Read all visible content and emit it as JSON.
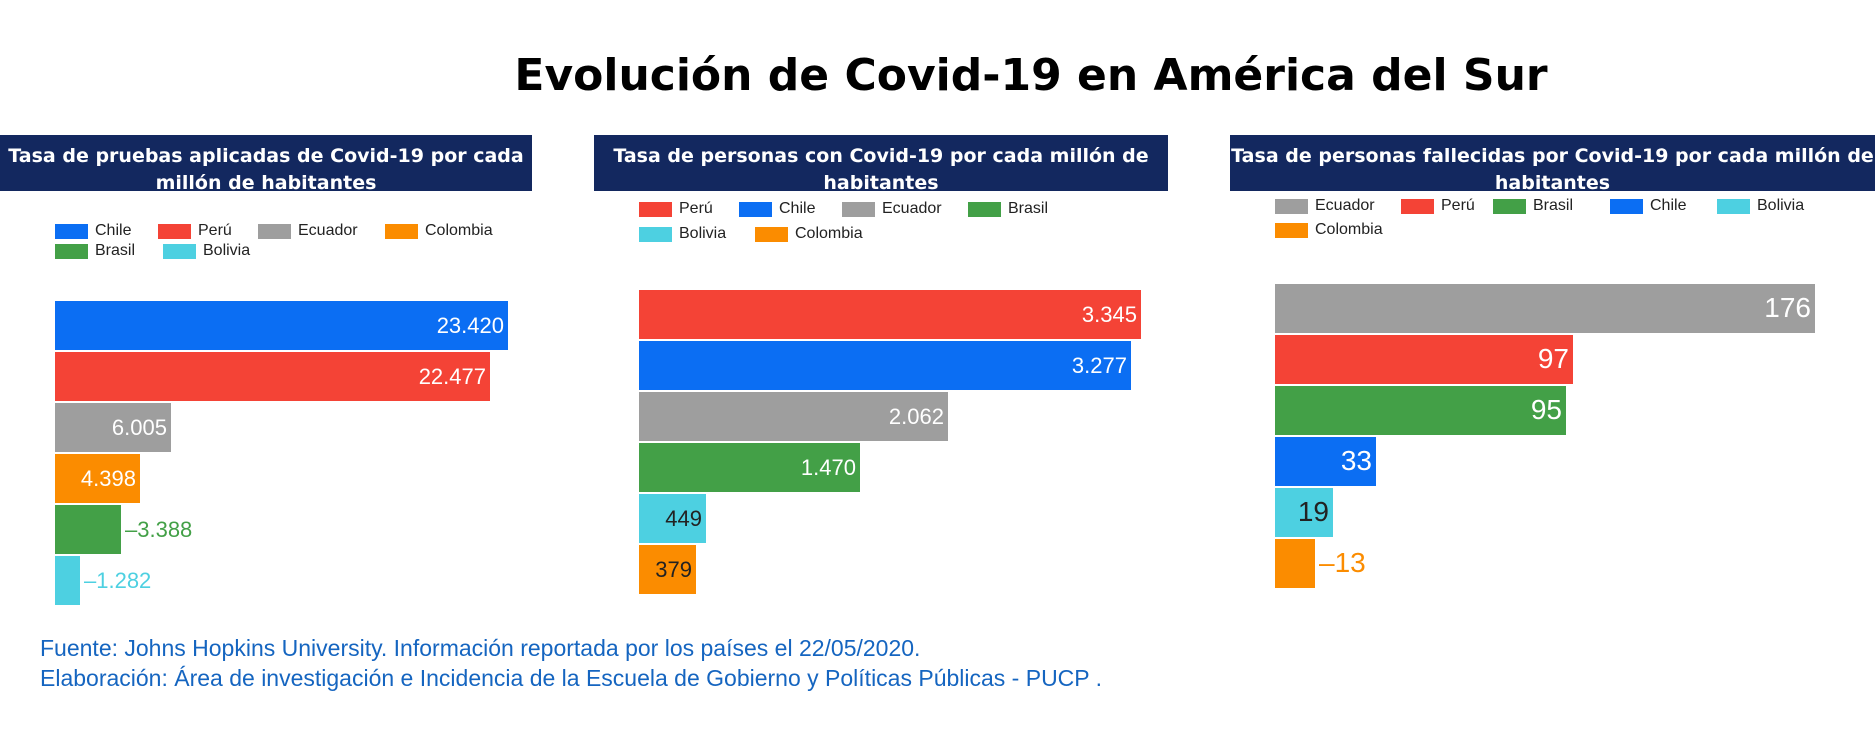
{
  "title": "Evolución de Covid-19 en América del Sur",
  "colors": {
    "Chile": "#0b6ef3",
    "Perú": "#f44336",
    "Ecuador": "#9e9e9e",
    "Colombia": "#fb8c00",
    "Brasil": "#43a047",
    "Bolivia": "#4dd0e1",
    "header_bg": "#13285f",
    "footer_text": "#1565c0"
  },
  "chart_data": [
    {
      "type": "bar",
      "orientation": "horizontal",
      "title": "Tasa de pruebas aplicadas de Covid-19 por cada millón de habitantes",
      "legend": [
        "Chile",
        "Perú",
        "Ecuador",
        "Colombia",
        "Brasil",
        "Bolivia"
      ],
      "categories": [
        "Chile",
        "Perú",
        "Ecuador",
        "Colombia",
        "Brasil",
        "Bolivia"
      ],
      "values": [
        23420,
        22477,
        6005,
        4398,
        3388,
        1282
      ],
      "labels": [
        "23.420",
        "22.477",
        "6.005",
        "4.398",
        "3.388",
        "1.282"
      ]
    },
    {
      "type": "bar",
      "orientation": "horizontal",
      "title": "Tasa de personas con Covid-19 por cada millón de habitantes",
      "legend": [
        "Perú",
        "Chile",
        "Ecuador",
        "Brasil",
        "Bolivia",
        "Colombia"
      ],
      "categories": [
        "Perú",
        "Chile",
        "Ecuador",
        "Brasil",
        "Bolivia",
        "Colombia"
      ],
      "values": [
        3345,
        3277,
        2062,
        1470,
        449,
        379
      ],
      "labels": [
        "3.345",
        "3.277",
        "2.062",
        "1.470",
        "449",
        "379"
      ]
    },
    {
      "type": "bar",
      "orientation": "horizontal",
      "title": "Tasa de personas fallecidas por Covid-19 por cada millón de habitantes",
      "legend": [
        "Ecuador",
        "Perú",
        "Brasil",
        "Chile",
        "Bolivia",
        "Colombia"
      ],
      "categories": [
        "Ecuador",
        "Perú",
        "Brasil",
        "Chile",
        "Bolivia",
        "Colombia"
      ],
      "values": [
        176,
        97,
        95,
        33,
        19,
        13
      ],
      "labels": [
        "176",
        "97",
        "95",
        "33",
        "19",
        "13"
      ]
    }
  ],
  "footer": {
    "line1": "Fuente: Johns Hopkins University. Información reportada por los países el 22/05/2020.",
    "line2": "Elaboración: Área de investigación e Incidencia de la Escuela de Gobierno y Políticas Públicas - PUCP ."
  }
}
